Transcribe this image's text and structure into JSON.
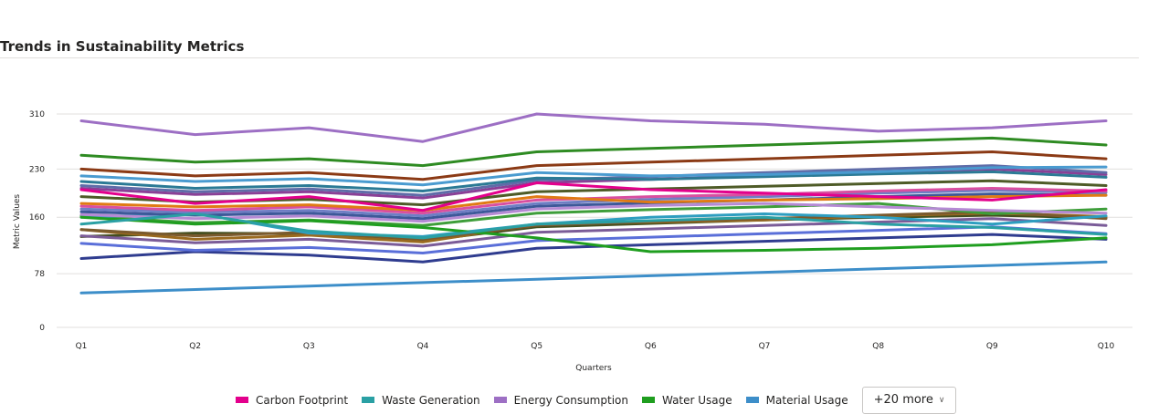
{
  "chart_data": {
    "type": "line",
    "title": "Trends in Sustainability Metrics",
    "xlabel": "Quarters",
    "ylabel": "Metric Values",
    "ylim": [
      0,
      310
    ],
    "yticks": [
      0,
      78,
      160,
      230,
      310
    ],
    "grid": true,
    "legend_position": "bottom",
    "categories": [
      "Q1",
      "Q2",
      "Q3",
      "Q4",
      "Q5",
      "Q6",
      "Q7",
      "Q8",
      "Q9",
      "Q10"
    ],
    "series": [
      {
        "name": "Carbon Footprint",
        "color": "#E3008C",
        "values": [
          200,
          180,
          190,
          170,
          210,
          200,
          195,
          190,
          185,
          200
        ]
      },
      {
        "name": "Waste Generation",
        "color": "#2AA0A4",
        "values": [
          150,
          165,
          140,
          130,
          150,
          155,
          160,
          150,
          145,
          135
        ]
      },
      {
        "name": "Energy Consumption",
        "color": "#9D6FC4",
        "values": [
          300,
          280,
          290,
          270,
          310,
          300,
          295,
          285,
          290,
          300
        ]
      },
      {
        "name": "Water Usage",
        "color": "#1F9E1F",
        "values": [
          160,
          150,
          155,
          145,
          130,
          110,
          112,
          115,
          120,
          130
        ]
      },
      {
        "name": "Material Usage",
        "color": "#3D8EC9",
        "values": [
          50,
          55,
          60,
          65,
          70,
          75,
          80,
          85,
          90,
          95
        ]
      },
      {
        "color": "#2E8B22",
        "values": [
          250,
          240,
          245,
          235,
          255,
          260,
          265,
          270,
          275,
          265
        ]
      },
      {
        "color": "#8B3A15",
        "values": [
          230,
          220,
          225,
          215,
          235,
          240,
          245,
          250,
          255,
          245
        ]
      },
      {
        "color": "#4A9BD0",
        "values": [
          220,
          212,
          216,
          207,
          225,
          220,
          222,
          226,
          232,
          233
        ]
      },
      {
        "color": "#2B7A95",
        "values": [
          212,
          202,
          206,
          198,
          217,
          215,
          219,
          223,
          226,
          218
        ]
      },
      {
        "color": "#5F6CA8",
        "values": [
          206,
          197,
          201,
          192,
          214,
          219,
          225,
          230,
          235,
          225
        ]
      },
      {
        "color": "#8A4096",
        "values": [
          202,
          193,
          197,
          188,
          210,
          215,
          220,
          226,
          230,
          222
        ]
      },
      {
        "color": "#4E5B27",
        "values": [
          190,
          182,
          186,
          178,
          197,
          201,
          205,
          209,
          213,
          206
        ]
      },
      {
        "color": "#E07A14",
        "values": [
          180,
          175,
          178,
          170,
          190,
          182,
          185,
          187,
          190,
          192
        ]
      },
      {
        "color": "#D94FA0",
        "values": [
          176,
          170,
          175,
          166,
          185,
          190,
          193,
          198,
          202,
          198
        ]
      },
      {
        "color": "#6E7EC4",
        "values": [
          172,
          167,
          170,
          162,
          180,
          186,
          190,
          195,
          199,
          196
        ]
      },
      {
        "color": "#3D5899",
        "values": [
          168,
          163,
          166,
          158,
          176,
          181,
          185,
          190,
          194,
          192
        ]
      },
      {
        "color": "#B58AD4",
        "values": [
          164,
          158,
          162,
          154,
          172,
          177,
          180,
          175,
          170,
          166
        ]
      },
      {
        "color": "#2E9EC0",
        "values": [
          160,
          166,
          137,
          132,
          150,
          160,
          165,
          160,
          150,
          162
        ]
      },
      {
        "color": "#3E9E3A",
        "values": [
          162,
          152,
          156,
          148,
          166,
          171,
          175,
          180,
          165,
          172
        ]
      },
      {
        "color": "#7A5A2D",
        "values": [
          142,
          133,
          138,
          128,
          148,
          154,
          158,
          163,
          168,
          158
        ]
      },
      {
        "color": "#7B5C98",
        "values": [
          133,
          123,
          128,
          118,
          138,
          143,
          148,
          153,
          158,
          148
        ]
      },
      {
        "color": "#5A6FD9",
        "values": [
          122,
          112,
          116,
          108,
          126,
          131,
          136,
          141,
          146,
          136
        ]
      },
      {
        "color": "#2F3C8F",
        "values": [
          100,
          110,
          105,
          95,
          115,
          120,
          125,
          130,
          135,
          128
        ]
      },
      {
        "color": "#9A6A1F",
        "values": [
          142,
          128,
          134,
          124,
          150,
          153,
          156,
          162,
          166,
          161
        ]
      },
      {
        "color": "#444E1E",
        "values": [
          132,
          137,
          136,
          126,
          146,
          151,
          156,
          160,
          163,
          159
        ]
      }
    ]
  },
  "legend": {
    "more_label": "+20 more",
    "chevron": "chevron-down-icon"
  }
}
